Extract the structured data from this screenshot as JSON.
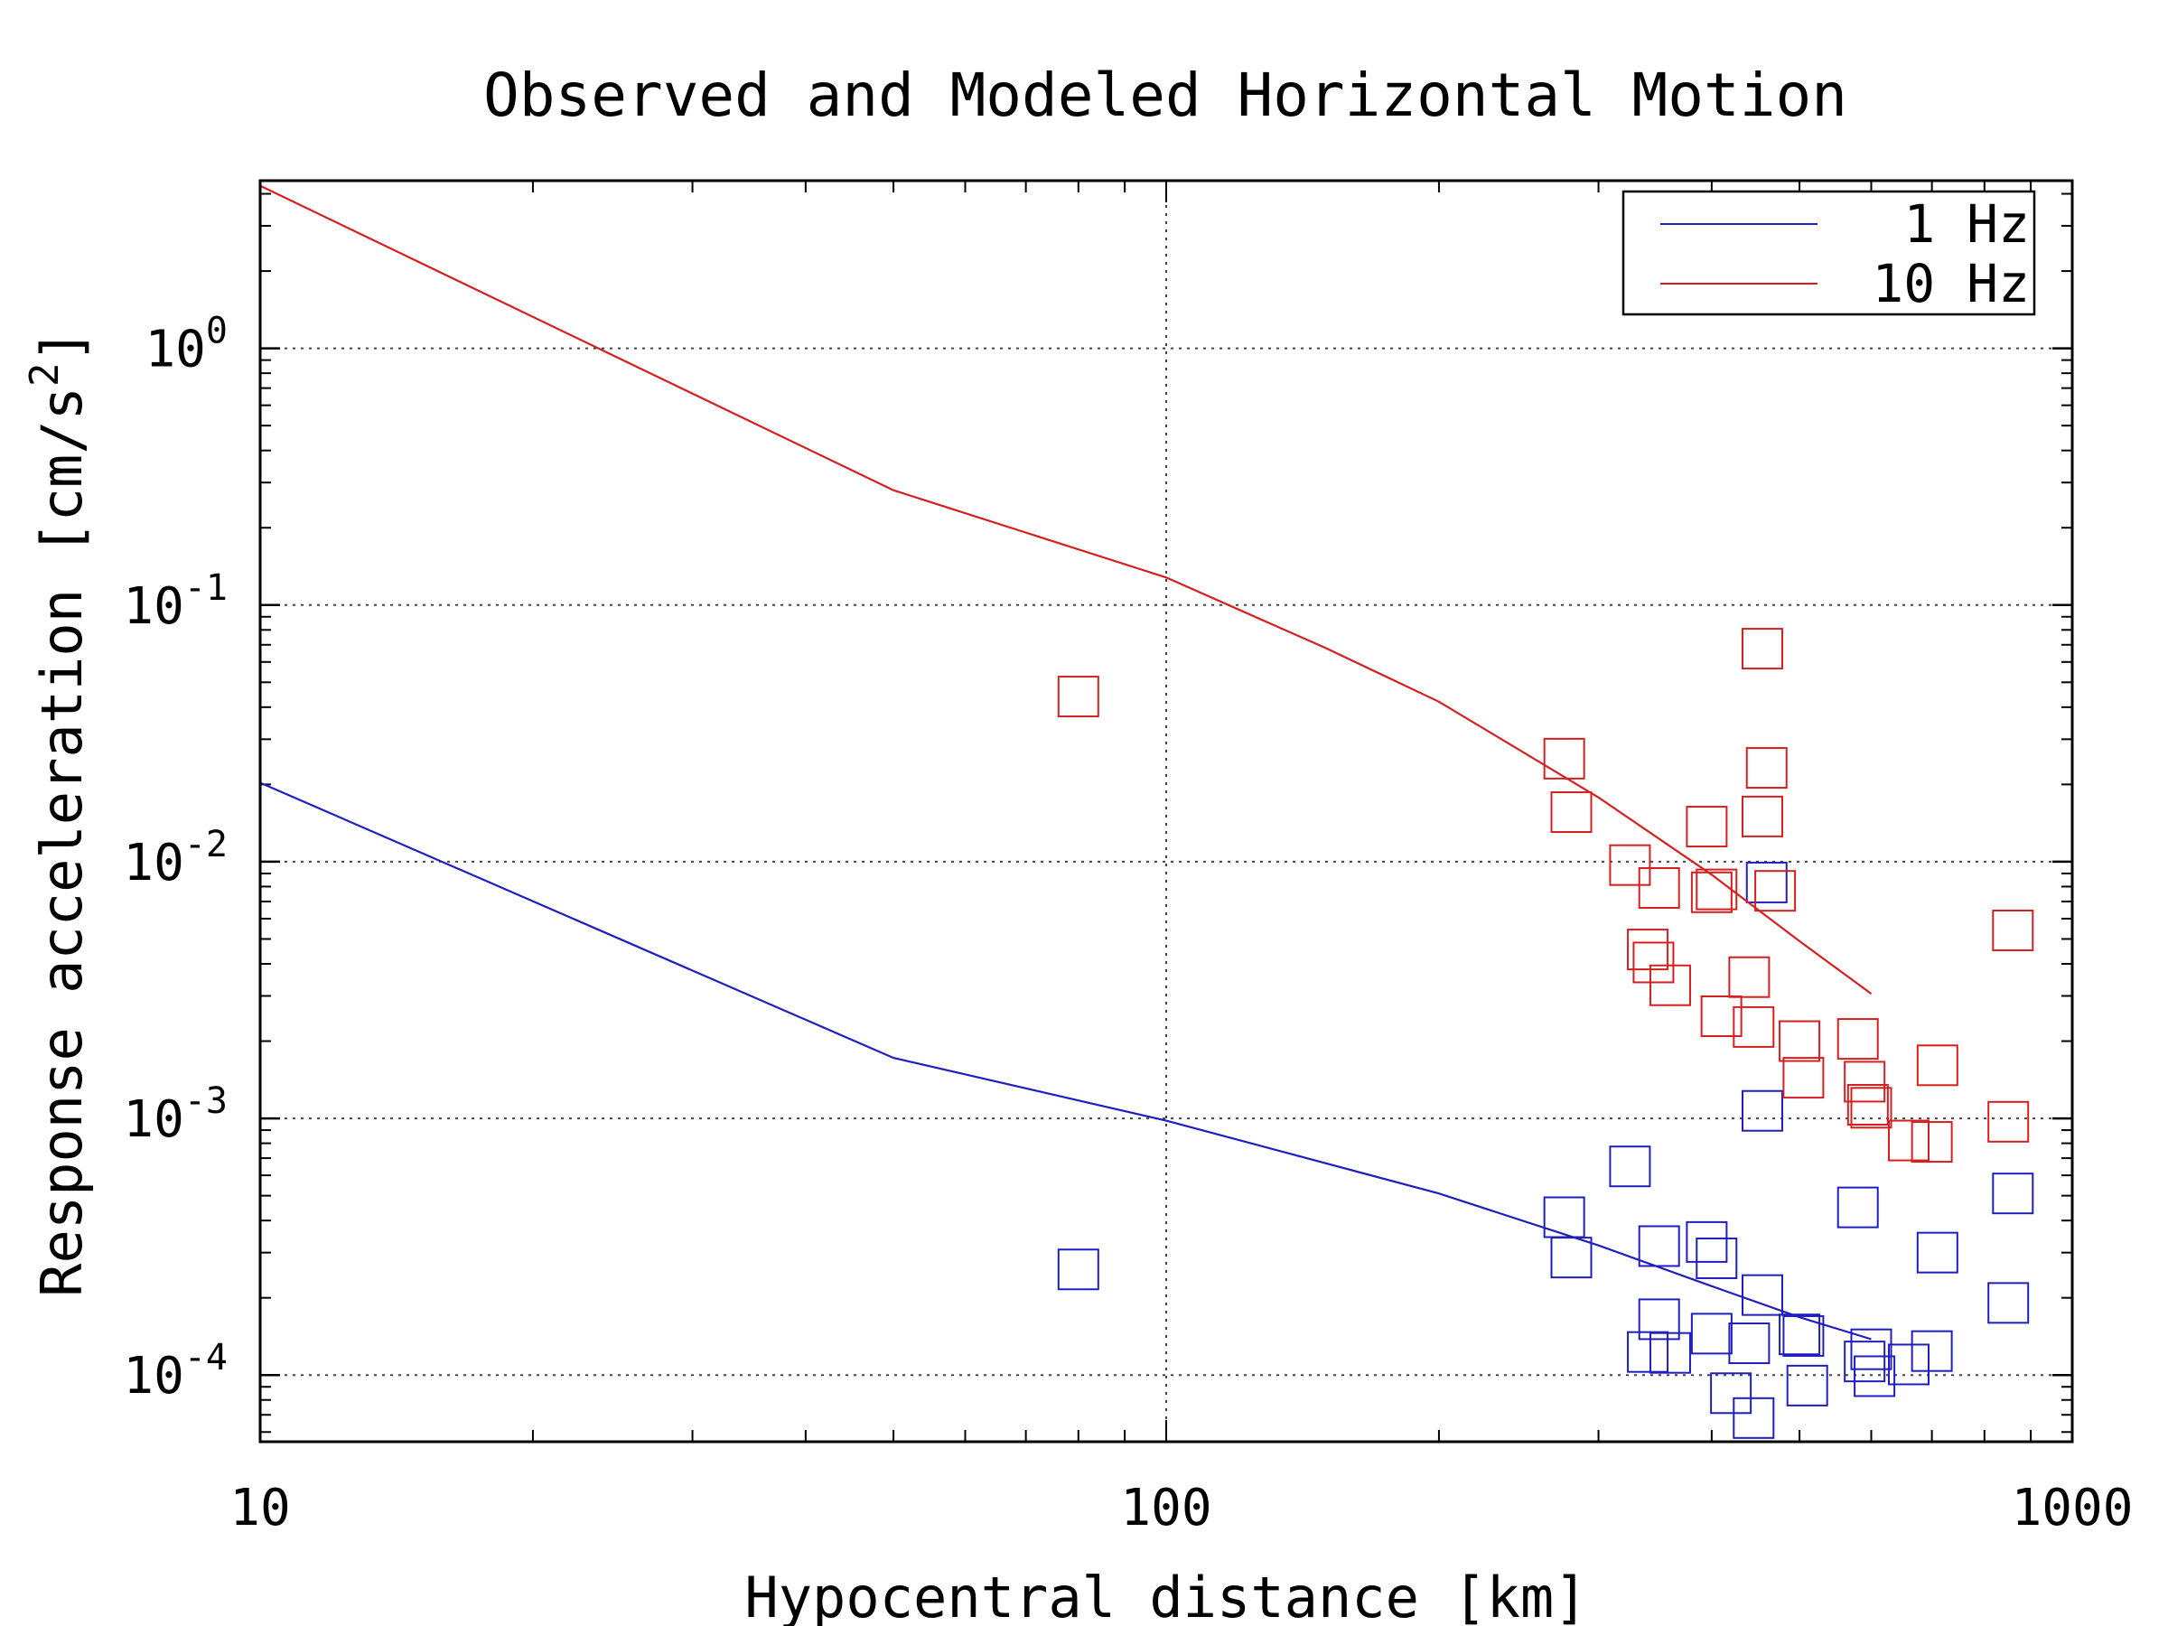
{
  "chart_data": {
    "type": "scatter",
    "title": "Observed and Modeled Horizontal Motion",
    "xlabel": "Hypocentral distance [km]",
    "ylabel_main": "Response acceleration [cm/s",
    "ylabel_exp": "2",
    "ylabel_end": "]",
    "xscale": "log",
    "yscale": "log",
    "xlim": [
      10,
      1000
    ],
    "ylim": [
      5.5e-05,
      4.5
    ],
    "grid": true,
    "legend_position": "top-right",
    "x_ticks": [
      {
        "value": 10,
        "label": "10"
      },
      {
        "value": 100,
        "label": "100"
      },
      {
        "value": 1000,
        "label": "1000"
      }
    ],
    "y_ticks": [
      {
        "value": 1,
        "base": "10",
        "exp": "0"
      },
      {
        "value": 0.1,
        "base": "10",
        "exp": "-1"
      },
      {
        "value": 0.01,
        "base": "10",
        "exp": "-2"
      },
      {
        "value": 0.001,
        "base": "10",
        "exp": "-3"
      },
      {
        "value": 0.0001,
        "base": "10",
        "exp": "-4"
      }
    ],
    "series": [
      {
        "name": "1 Hz",
        "color": "#1f1fbf",
        "model_curve": [
          [
            10,
            0.0203
          ],
          [
            50,
            0.00172
          ],
          [
            100,
            0.00098
          ],
          [
            200,
            0.00051
          ],
          [
            300,
            0.00032
          ],
          [
            400,
            0.000222
          ],
          [
            500,
            0.000168
          ],
          [
            600,
            0.000138
          ]
        ],
        "observed": [
          [
            80,
            0.000258
          ],
          [
            275,
            0.000412
          ],
          [
            280,
            0.000287
          ],
          [
            325,
            0.00065
          ],
          [
            340,
            0.000123
          ],
          [
            350,
            0.000318
          ],
          [
            350,
            0.000165
          ],
          [
            360,
            0.000122
          ],
          [
            395,
            0.00033
          ],
          [
            400,
            0.000145
          ],
          [
            405,
            0.000285
          ],
          [
            420,
            8.5e-05
          ],
          [
            440,
            0.000133
          ],
          [
            445,
            6.8e-05
          ],
          [
            455,
            0.00107
          ],
          [
            455,
            0.000205
          ],
          [
            460,
            0.0083
          ],
          [
            500,
            0.000144
          ],
          [
            505,
            0.000142
          ],
          [
            510,
            9.1e-05
          ],
          [
            580,
            0.00045
          ],
          [
            590,
            0.000113
          ],
          [
            600,
            0.000126
          ],
          [
            605,
            9.9e-05
          ],
          [
            660,
            0.00011
          ],
          [
            700,
            0.000124
          ],
          [
            710,
            0.0003
          ],
          [
            850,
            0.000191
          ],
          [
            860,
            0.00051
          ]
        ]
      },
      {
        "name": "10 Hz",
        "color": "#d42020",
        "model_curve": [
          [
            10,
            4.3
          ],
          [
            50,
            0.28
          ],
          [
            100,
            0.128
          ],
          [
            150,
            0.068
          ],
          [
            200,
            0.042
          ],
          [
            300,
            0.0178
          ],
          [
            400,
            0.0089
          ],
          [
            500,
            0.0049
          ],
          [
            600,
            0.00306
          ]
        ],
        "observed": [
          [
            80,
            0.044
          ],
          [
            275,
            0.0252
          ],
          [
            280,
            0.0156
          ],
          [
            325,
            0.0097
          ],
          [
            340,
            0.00455
          ],
          [
            345,
            0.00405
          ],
          [
            350,
            0.0079
          ],
          [
            360,
            0.0033
          ],
          [
            395,
            0.0137
          ],
          [
            400,
            0.0076
          ],
          [
            405,
            0.0078
          ],
          [
            410,
            0.0025
          ],
          [
            440,
            0.00355
          ],
          [
            445,
            0.00227
          ],
          [
            455,
            0.0676
          ],
          [
            455,
            0.015
          ],
          [
            460,
            0.0232
          ],
          [
            470,
            0.0077
          ],
          [
            500,
            0.002
          ],
          [
            505,
            0.00144
          ],
          [
            580,
            0.00204
          ],
          [
            590,
            0.00139
          ],
          [
            595,
            0.00113
          ],
          [
            600,
            0.0011
          ],
          [
            660,
            0.00082
          ],
          [
            700,
            0.00081
          ],
          [
            710,
            0.00161
          ],
          [
            850,
            0.00097
          ],
          [
            860,
            0.0054
          ]
        ]
      }
    ]
  }
}
